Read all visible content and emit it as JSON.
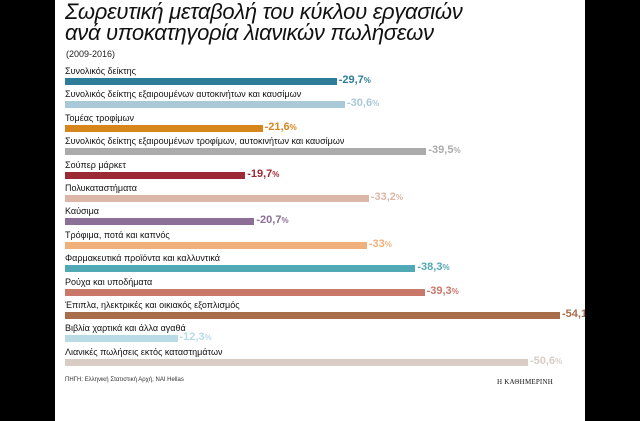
{
  "chart_data": {
    "type": "bar",
    "orientation": "horizontal",
    "title": "Σωρευτική μεταβολή του κύκλου εργασιών",
    "title_line2": "ανά υποκατηγορία λιανικών πωλήσεων",
    "subtitle": "(2009-2016)",
    "unit": "%",
    "categories": [
      "Συνολικός δείκτης",
      "Συνολικός δείκτης εξαιρουμένων αυτοκινήτων και καυσίμων",
      "Τομέας τροφίμων",
      "Συνολικός δείκτης εξαιρουμένων τροφίμων, αυτοκινήτων και καυσίμων",
      "Σούπερ μάρκετ",
      "Πολυκαταστήματα",
      "Καύσιμα",
      "Τρόφιμα, ποτά και καπνός",
      "Φαρμακευτικά προϊόντα και καλλυντικά",
      "Ρούχα και υποδήματα",
      "Έπιπλα, ηλεκτρικές και οικιακός εξοπλισμός",
      "Βιβλία χαρτικά και άλλα αγαθά",
      "Λιανικές πωλήσεις εκτός καταστημάτων"
    ],
    "values": [
      -29.7,
      -30.6,
      -21.6,
      -39.5,
      -19.7,
      -33.2,
      -20.7,
      -33,
      -38.3,
      -39.3,
      -54.1,
      -12.3,
      -50.6
    ],
    "value_labels": [
      "-29,7",
      "-30,6",
      "-21,6",
      "-39,5",
      "-19,7",
      "-33,2",
      "-20,7",
      "-33",
      "-38,3",
      "-39,3",
      "-54,1",
      "-12,3",
      "-50,6"
    ],
    "colors": [
      "#2e7d98",
      "#a9c9d8",
      "#d7861c",
      "#ababab",
      "#9b2a35",
      "#dcb7a8",
      "#8b6f97",
      "#f0b07c",
      "#52a9b6",
      "#c9786a",
      "#a86e4b",
      "#b9dbe6",
      "#d8ccc4"
    ],
    "xlim": [
      0,
      -54.1
    ],
    "grid": false,
    "legend": "none"
  },
  "source": "ΠΗΓΗ: Ελληνική Στατιστική Αρχή, NAI Hellas",
  "brand": "Η ΚΑΘΗΜΕΡΙΝΗ"
}
